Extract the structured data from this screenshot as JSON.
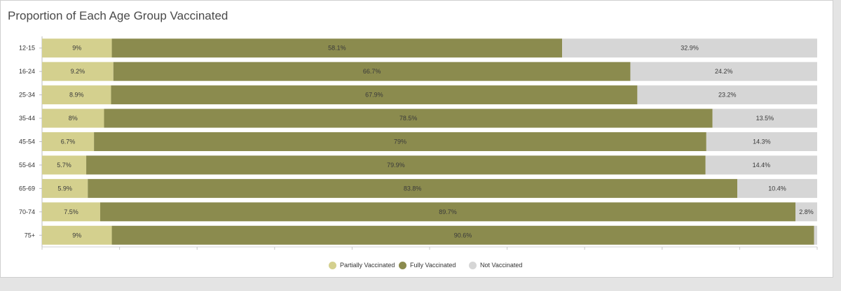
{
  "chart_data": {
    "type": "bar",
    "orientation": "horizontal",
    "stacked": true,
    "title": "Proportion of Each Age Group Vaccinated",
    "categories": [
      "12-15",
      "16-24",
      "25-34",
      "35-44",
      "45-54",
      "55-64",
      "65-69",
      "70-74",
      "75+"
    ],
    "series": [
      {
        "name": "Partially Vaccinated",
        "color": "#d4d08e",
        "values": [
          9,
          9.2,
          8.9,
          8,
          6.7,
          5.7,
          5.9,
          7.5,
          9
        ],
        "labels": [
          "9%",
          "9.2%",
          "8.9%",
          "8%",
          "6.7%",
          "5.7%",
          "5.9%",
          "7.5%",
          "9%"
        ]
      },
      {
        "name": "Fully Vaccinated",
        "color": "#8b8b4e",
        "values": [
          58.1,
          66.7,
          67.9,
          78.5,
          79,
          79.9,
          83.8,
          89.7,
          90.6
        ],
        "labels": [
          "58.1%",
          "66.7%",
          "67.9%",
          "78.5%",
          "79%",
          "79.9%",
          "83.8%",
          "89.7%",
          "90.6%"
        ]
      },
      {
        "name": "Not Vaccinated",
        "color": "#d6d6d6",
        "values": [
          32.9,
          24.2,
          23.2,
          13.5,
          14.3,
          14.4,
          10.4,
          2.8,
          0.4
        ],
        "labels": [
          "32.9%",
          "24.2%",
          "23.2%",
          "13.5%",
          "14.3%",
          "14.4%",
          "10.4%",
          "2.8%",
          ""
        ]
      }
    ],
    "xlim": [
      0,
      100
    ],
    "grid": true,
    "legend_position": "bottom-center"
  }
}
